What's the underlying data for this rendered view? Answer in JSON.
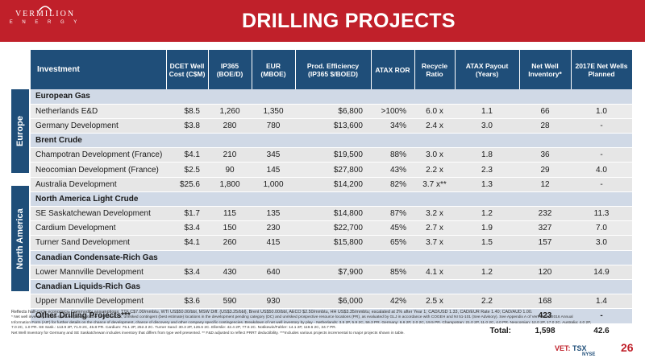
{
  "header": {
    "title": "DRILLING PROJECTS",
    "logo_name": "VERMILION",
    "logo_sub": "E N E R G Y",
    "colors": {
      "red": "#c0202a",
      "navy": "#1f4e79"
    }
  },
  "columns": [
    "Investment",
    "DCET Well Cost (C$M)",
    "IP365 (BOE/D)",
    "EUR (MBOE)",
    "Prod. Efficiency (IP365 $/BOED)",
    "ATAX ROR",
    "Recycle Ratio",
    "ATAX Payout (Years)",
    "Net Well Inventory*",
    "2017E Net Wells Planned"
  ],
  "regions": [
    "Europe",
    "North America"
  ],
  "rows": [
    {
      "type": "group",
      "name": "European Gas"
    },
    {
      "type": "row",
      "name": "Netherlands E&D",
      "cells": [
        "$8.5",
        "1,260",
        "1,350",
        "$6,800",
        ">100%",
        "6.0 x",
        "1.1",
        "66",
        "1.0"
      ]
    },
    {
      "type": "row",
      "name": "Germany Development",
      "cells": [
        "$3.8",
        "280",
        "780",
        "$13,600",
        "34%",
        "2.4 x",
        "3.0",
        "28",
        "-"
      ]
    },
    {
      "type": "group",
      "name": "Brent Crude"
    },
    {
      "type": "row",
      "name": "Champotran Development (France)",
      "cells": [
        "$4.1",
        "210",
        "345",
        "$19,500",
        "88%",
        "3.0 x",
        "1.8",
        "36",
        "-"
      ]
    },
    {
      "type": "row",
      "name": "Neocomian Development (France)",
      "cells": [
        "$2.5",
        "90",
        "145",
        "$27,800",
        "43%",
        "2.2 x",
        "2.3",
        "29",
        "4.0"
      ]
    },
    {
      "type": "row",
      "name": "Australia Development",
      "cells": [
        "$25.6",
        "1,800",
        "1,000",
        "$14,200",
        "82%",
        "3.7 x**",
        "1.3",
        "12",
        "-"
      ]
    },
    {
      "type": "group",
      "name": "North America Light Crude"
    },
    {
      "type": "row",
      "name": "SE Saskatchewan Development",
      "cells": [
        "$1.7",
        "115",
        "135",
        "$14,800",
        "87%",
        "3.2 x",
        "1.2",
        "232",
        "11.3"
      ]
    },
    {
      "type": "row",
      "name": "Cardium Development",
      "cells": [
        "$3.4",
        "150",
        "230",
        "$22,700",
        "45%",
        "2.7 x",
        "1.9",
        "327",
        "7.0"
      ]
    },
    {
      "type": "row",
      "name": "Turner Sand Development",
      "cells": [
        "$4.1",
        "260",
        "415",
        "$15,800",
        "65%",
        "3.7 x",
        "1.5",
        "157",
        "3.0"
      ]
    },
    {
      "type": "group",
      "name": "Canadian Condensate-Rich Gas"
    },
    {
      "type": "row",
      "name": "Lower Mannville Development",
      "cells": [
        "$3.4",
        "430",
        "640",
        "$7,900",
        "85%",
        "4.1 x",
        "1.2",
        "120",
        "14.9"
      ]
    },
    {
      "type": "group",
      "name": "Canadian Liquids-Rich Gas"
    },
    {
      "type": "row",
      "name": "Upper Mannville Development",
      "cells": [
        "$3.6",
        "590",
        "930",
        "$6,000",
        "42%",
        "2.5 x",
        "2.2",
        "168",
        "1.4"
      ]
    },
    {
      "type": "other",
      "name": "Other Drilling Projects***",
      "cells": [
        "",
        "",
        "",
        "",
        "",
        "",
        "",
        "423",
        "-"
      ]
    }
  ],
  "total": {
    "label": "Total:",
    "inventory": "1,598",
    "planned": "42.6"
  },
  "footnotes": [
    "Reflects half-cycle economics. Commodity assumptions: TTF C$7.00/mmbtu, WTI US$50.00/bbl, MSW Diff. (US$3.25/bbl), Brent US$50.00/bbl, AECO $2.50/mmbtu, HH US$3.35/mmbtu; escalated at 2% after Year 1; CAD/USD 1.33, CAD/EUR Rate 1.40; CAD/AUD 1.00.",
    "* Net well inventory includes proved plus probable (2P) locations, unrisked contingent (best estimate) locations in the development pending category (DC) and unrisked prospective resource locations (PR), as evaluated by GLJ in accordance with COGEH and NI 51-101 (See Advisory). See Appendix A of Vermilion's 2016 Annual Information Form (AIF) for further details on the chance of development, chance of discovery and other company specific contingencies. Breakdown of net well inventory by play - Netherlands: 3.5 2P, 5.9 2C, 56.3 PR. Germany: 6.6 2P, 2.0 2C, 19.5 PR. Champotran: 21.0 2P, 11.0 2C, 4.0 PR. Neocomian: 12.0 2P, 17.0 2C. Australia: 4.0 2P, 7.0 2C, 1.0 PR. SE Sask.: 113.9 2P, 71.9 2C, 45.8 PR. Cardium: 75.1 2P, 252.3 2C. Turner Sand: 30.3 2P, 126.6 2C. Ellerslie: 42.4 2P, 77.6 2C. Notikewin/Fahler: 14.1 2P, 119.6 2C, 34.7 PR.",
    "Net Well Inventory for Germany and SE Saskatchewan includes inventory that differs from type well presented. ** F&D adjusted to reflect PRRT deductibility. ***Includes various projects incremental to major projects shown in table."
  ],
  "footer": {
    "page_number": "26",
    "vet": "VET:",
    "tsx": "TSX",
    "nyse": "NYSE"
  }
}
